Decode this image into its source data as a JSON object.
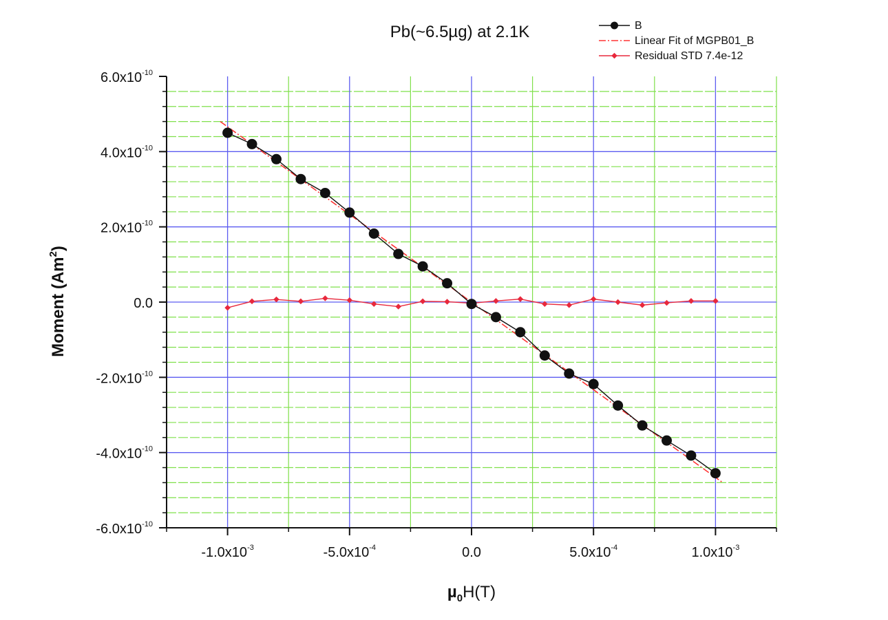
{
  "chart_data": {
    "type": "scatter",
    "title": "Pb(~6.5µg) at 2.1K",
    "xlabel": {
      "pre": "µ",
      "sub": "0",
      "post": "H(T)"
    },
    "ylabel": {
      "pre": "Moment (Am",
      "sup": "2",
      "post": ")"
    },
    "xlim": [
      -0.00125,
      0.00125
    ],
    "ylim": [
      -6e-10,
      6e-10
    ],
    "x_ticks": [
      {
        "value": -0.001,
        "mant": "-1.0x10",
        "exp": "-3"
      },
      {
        "value": -0.0005,
        "mant": "-5.0x10",
        "exp": "-4"
      },
      {
        "value": 0,
        "mant": "0.0",
        "exp": ""
      },
      {
        "value": 0.0005,
        "mant": "5.0x10",
        "exp": "-4"
      },
      {
        "value": 0.001,
        "mant": "1.0x10",
        "exp": "-3"
      }
    ],
    "y_ticks": [
      {
        "value": 6e-10,
        "mant": "6.0x10",
        "exp": "-10"
      },
      {
        "value": 4e-10,
        "mant": "4.0x10",
        "exp": "-10"
      },
      {
        "value": 2e-10,
        "mant": "2.0x10",
        "exp": "-10"
      },
      {
        "value": 0,
        "mant": "0.0",
        "exp": ""
      },
      {
        "value": -2e-10,
        "mant": "-2.0x10",
        "exp": "-10"
      },
      {
        "value": -4e-10,
        "mant": "-4.0x10",
        "exp": "-10"
      },
      {
        "value": -6e-10,
        "mant": "-6.0x10",
        "exp": "-10"
      }
    ],
    "grid": true,
    "legend_placement": "top-right, outside plot",
    "colors": {
      "major_grid": "#5c5cf0",
      "minor_grid": "#7fe04a",
      "data": "#111111",
      "fit": "#ff3333",
      "residual": "#e8283c",
      "axis": "#111111"
    },
    "series": [
      {
        "name": "B",
        "style": "line-with-filled-circles",
        "x": [
          -0.001,
          -0.0009,
          -0.0008,
          -0.0007,
          -0.0006,
          -0.0005,
          -0.0004,
          -0.0003,
          -0.0002,
          -0.0001,
          0,
          0.0001,
          0.0002,
          0.0003,
          0.0004,
          0.0005,
          0.0006,
          0.0007,
          0.0008,
          0.0009,
          0.001
        ],
        "y": [
          4.5e-10,
          4.2e-10,
          3.8e-10,
          3.27e-10,
          2.9e-10,
          2.38e-10,
          1.82e-10,
          1.28e-10,
          9.5e-11,
          5e-11,
          -5e-12,
          -4e-11,
          -8e-11,
          -1.42e-10,
          -1.9e-10,
          -2.18e-10,
          -2.75e-10,
          -3.28e-10,
          -3.68e-10,
          -4.08e-10,
          -4.55e-10
        ]
      },
      {
        "name": "Linear Fit of MGPB01_B",
        "style": "dash-dot-line",
        "x": [
          -0.00103,
          0.00103
        ],
        "y": [
          4.8e-10,
          -4.8e-10
        ]
      },
      {
        "name": "Residual STD 7.4e-12",
        "style": "line-with-small-diamonds",
        "x": [
          -0.001,
          -0.0009,
          -0.0008,
          -0.0007,
          -0.0006,
          -0.0005,
          -0.0004,
          -0.0003,
          -0.0002,
          -0.0001,
          0,
          0.0001,
          0.0002,
          0.0003,
          0.0004,
          0.0005,
          0.0006,
          0.0007,
          0.0008,
          0.0009,
          0.001
        ],
        "y": [
          -1.5e-11,
          2e-12,
          7e-12,
          2e-12,
          1e-11,
          5e-12,
          -5e-12,
          -1.2e-11,
          2e-12,
          1e-12,
          -3e-12,
          3e-12,
          8e-12,
          -5e-12,
          -8e-12,
          8e-12,
          0.0,
          -8e-12,
          -2e-12,
          3e-12,
          3e-12
        ]
      }
    ]
  }
}
